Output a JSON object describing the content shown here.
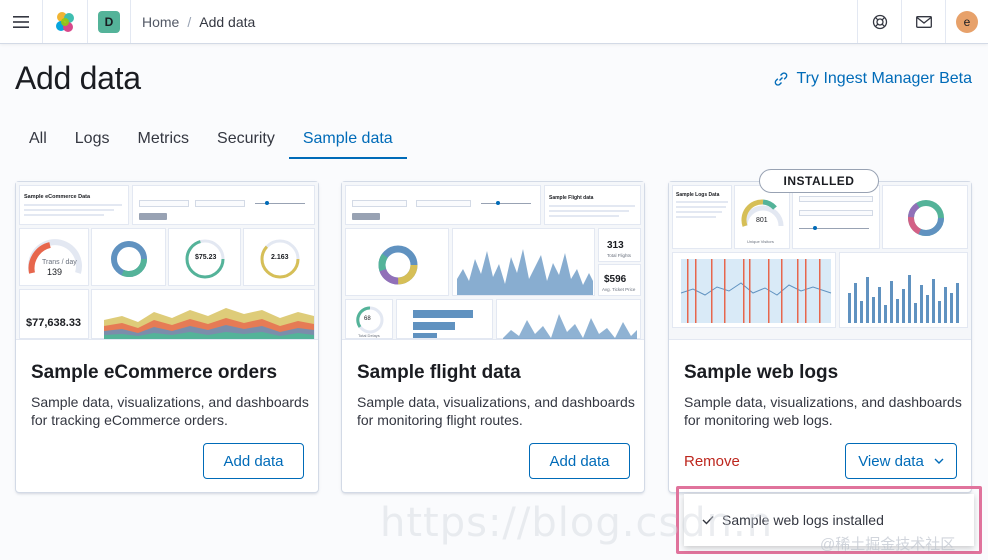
{
  "header": {
    "space_initial": "D",
    "breadcrumb_home": "Home",
    "breadcrumb_separator": "/",
    "breadcrumb_current": "Add data",
    "user_initial": "e"
  },
  "page": {
    "title": "Add data",
    "ingest_link": "Try Ingest Manager Beta"
  },
  "tabs": [
    {
      "label": "All"
    },
    {
      "label": "Logs"
    },
    {
      "label": "Metrics"
    },
    {
      "label": "Security"
    },
    {
      "label": "Sample data",
      "active": true
    }
  ],
  "cards": [
    {
      "title": "Sample eCommerce orders",
      "description": "Sample data, visualizations, and dashboards for tracking eCommerce orders.",
      "button": "Add data",
      "thumb": {
        "heading": "Sample eCommerce Data",
        "gauge_value": "139",
        "gauge_label": "Trans / day",
        "metric_1": "$75.23",
        "metric_2": "2.163",
        "revenue": "$77,638.33"
      }
    },
    {
      "title": "Sample flight data",
      "description": "Sample data, visualizations, and dashboards for monitoring flight routes.",
      "button": "Add data",
      "thumb": {
        "heading": "Sample Flight data",
        "metric_1": "313",
        "metric_1_label": "Total Flights",
        "metric_2": "$596",
        "metric_2_label": "Avg. Ticket Price",
        "delays": "68",
        "delays_label": "Total Delays"
      }
    },
    {
      "title": "Sample web logs",
      "description": "Sample data, visualizations, and dashboards for monitoring web logs.",
      "remove_label": "Remove",
      "button": "View data",
      "badge": "INSTALLED",
      "thumb": {
        "heading": "Sample Logs Data",
        "gauge_value": "801",
        "gauge_label": "Unique Visitors"
      }
    }
  ],
  "toast": {
    "message": "Sample web logs installed"
  },
  "watermark": "https://blog.csdn.n",
  "watermark_cn": "@稀土掘金技术社区",
  "colors": {
    "accent": "#006bb8",
    "danger": "#bd271e",
    "space_badge": "#54b399",
    "avatar": "#e7a16a",
    "toast_frame": "#e0739c"
  }
}
